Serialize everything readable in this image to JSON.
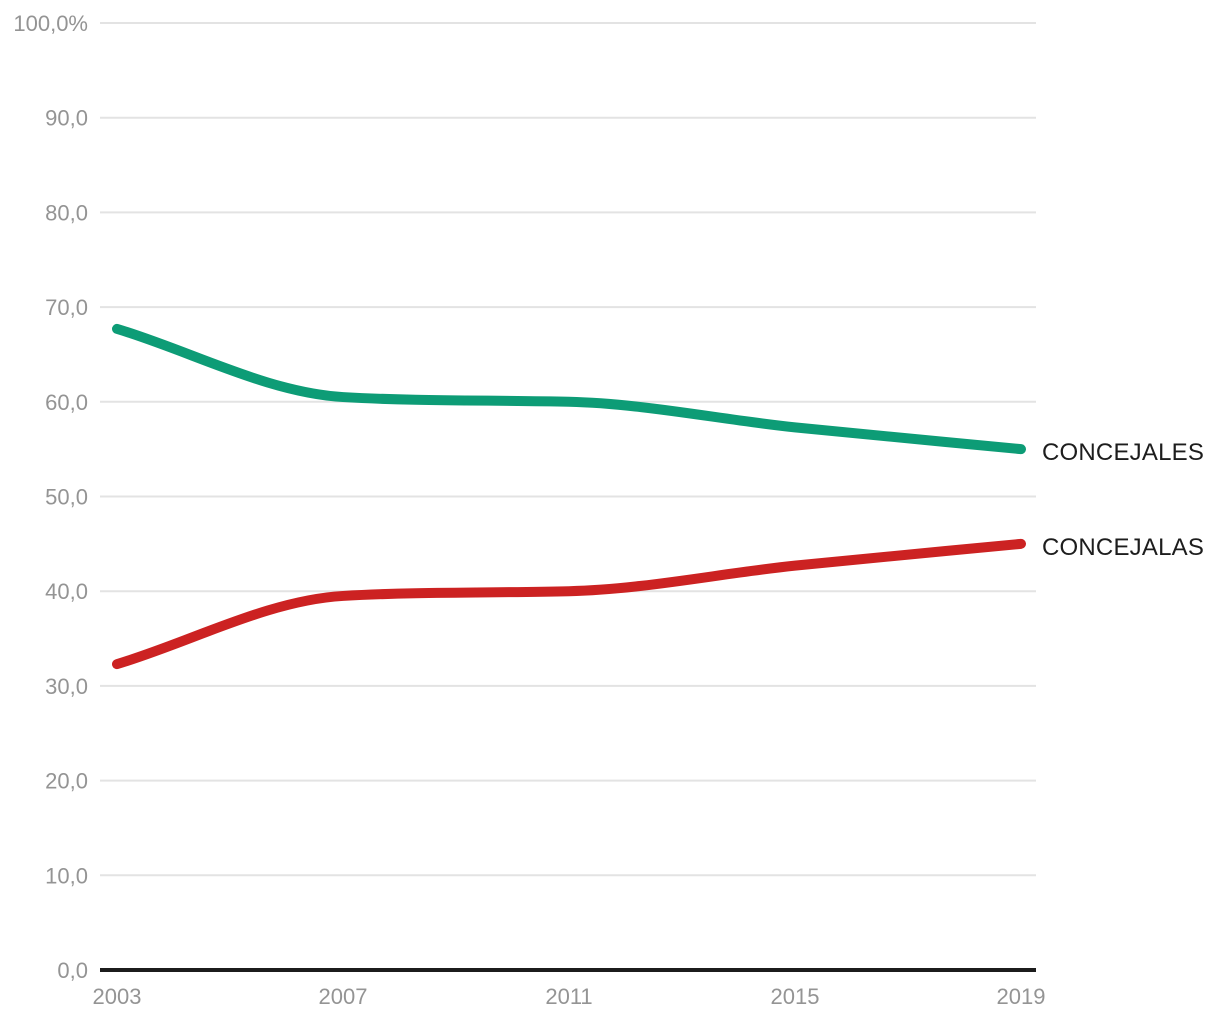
{
  "chart_data": {
    "type": "line",
    "title": "",
    "xlabel": "",
    "ylabel": "",
    "x": [
      2003,
      2007,
      2011,
      2015,
      2019
    ],
    "x_tick_labels": [
      "2003",
      "2007",
      "2011",
      "2015",
      "2019"
    ],
    "ylim": [
      0,
      100
    ],
    "y_ticks": [
      0,
      10,
      20,
      30,
      40,
      50,
      60,
      70,
      80,
      90,
      100
    ],
    "y_tick_labels": [
      "0,0",
      "10,0",
      "20,0",
      "30,0",
      "40,0",
      "50,0",
      "60,0",
      "70,0",
      "80,0",
      "90,0",
      "100,0%"
    ],
    "grid": true,
    "legend_position": "line-end-labels-right",
    "line_style": "smooth",
    "line_width": 10,
    "series": [
      {
        "name": "CONCEJALES",
        "values": [
          67.7,
          60.5,
          60.0,
          57.3,
          55.0
        ],
        "color": "#0d9c76"
      },
      {
        "name": "CONCEJALAS",
        "values": [
          32.3,
          39.5,
          40.0,
          42.7,
          45.0
        ],
        "color": "#cc2222"
      }
    ],
    "colors": {
      "grid": "#e3e3e3",
      "axis": "#1c1c1c",
      "tick_text": "#949494",
      "series_label_text": "#1d1d1d",
      "background": "#ffffff"
    }
  }
}
